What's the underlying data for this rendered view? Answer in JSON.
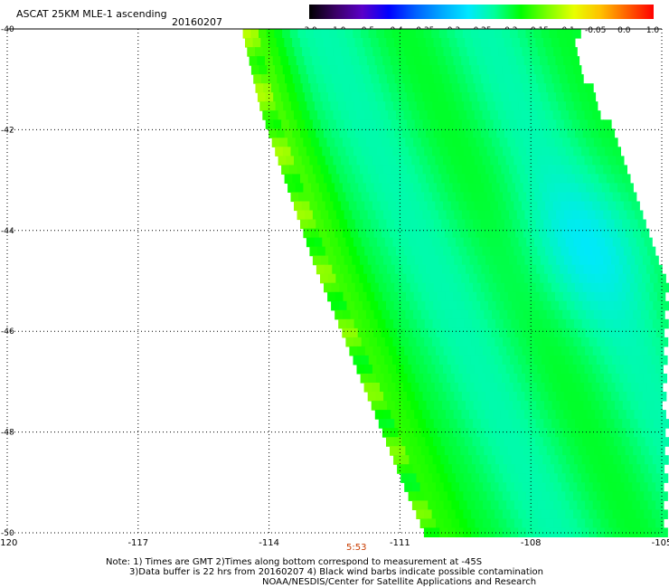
{
  "title": "ASCAT 25KM MLE-1 ascending",
  "date": "20160207",
  "colorbar": {
    "labels": [
      "-3.0",
      "-1.0",
      "-0.5",
      "-0.4",
      "-0.35",
      "-0.3",
      "-0.25",
      "-0.2",
      "-0.15",
      "-0.1",
      "-0.05",
      "0.0",
      "1.0"
    ],
    "colors": [
      "#000000",
      "#3a0066",
      "#5a00c8",
      "#0000ff",
      "#0060ff",
      "#00a8ff",
      "#00e8ff",
      "#00ff9a",
      "#00ff00",
      "#7cff00",
      "#e8ff00",
      "#ffc000",
      "#ff6000",
      "#ff0000"
    ]
  },
  "axes": {
    "x_ticks": [
      "-120",
      "-117",
      "-114",
      "-111",
      "-108",
      "-105"
    ],
    "y_ticks": [
      "-40",
      "-42",
      "-44",
      "-46",
      "-48",
      "-50"
    ],
    "x_range": [
      -120,
      -105
    ],
    "y_range": [
      -50,
      -40
    ]
  },
  "time_marks": [
    "5:53"
  ],
  "notes": [
    "Note: 1) Times are GMT 2)Times along bottom correspond to measurement at -45S",
    "3)Data buffer is 22 hrs from 20160207 4) Black wind barbs indicate possible contamination",
    "NOAA/NESDIS/Center for Satellite Applications and Research"
  ],
  "chart_data": {
    "type": "heatmap",
    "title": "ASCAT 25KM MLE-1 ascending",
    "subtitle": "20160207",
    "x_range": [
      -120,
      -105
    ],
    "y_range": [
      -50,
      -40
    ],
    "grid": true,
    "colorbar_range": [
      -3.0,
      1.0
    ],
    "swath_west_edge": [
      [
        -114.6,
        -40
      ],
      [
        -114.2,
        -41.5
      ],
      [
        -113.6,
        -43
      ],
      [
        -113.0,
        -44.5
      ],
      [
        -112.3,
        -46
      ],
      [
        -111.6,
        -47.5
      ],
      [
        -110.9,
        -49
      ],
      [
        -110.4,
        -50
      ]
    ],
    "swath_east_edge": [
      [
        -107.0,
        -40.6
      ],
      [
        -106.2,
        -42
      ],
      [
        -105.6,
        -43.6
      ],
      [
        -105.0,
        -45
      ],
      [
        -105.0,
        -50
      ]
    ]
  }
}
